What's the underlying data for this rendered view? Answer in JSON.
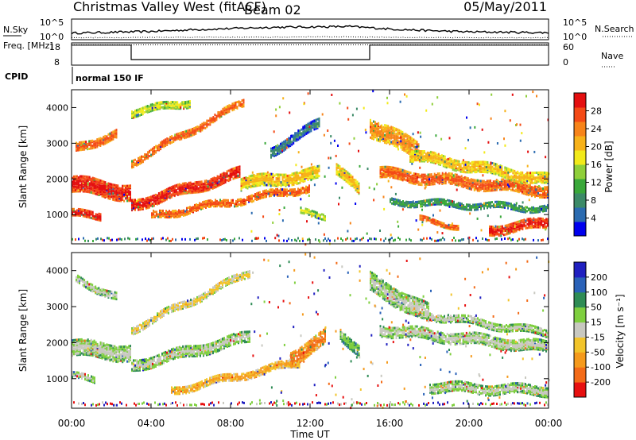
{
  "header": {
    "station": "Christmas Valley West (fitACF)",
    "beam": "Beam 02",
    "date": "05/May/2011"
  },
  "colors": {
    "power_scale": [
      "#0000ee",
      "#2b6bb0",
      "#3c8a68",
      "#3aa83a",
      "#8fcf3a",
      "#f2ea1a",
      "#f7b21a",
      "#f7841a",
      "#f44a16",
      "#e40f10"
    ],
    "velocity_scale": [
      "#2020c0",
      "#2a62b8",
      "#2f8c55",
      "#7fcf3f",
      "#c8c8c0",
      "#f2c42a",
      "#f59a1c",
      "#f36b18",
      "#e71010"
    ],
    "grey_scatter": "#c4c4bc"
  },
  "chart_data": [
    {
      "type": "line",
      "panel": "noise",
      "left_label": "N.Sky",
      "right_label": "N.Search",
      "left_ticks": [
        "10^5",
        "10^0"
      ],
      "right_ticks": [
        "10^5",
        "10^0"
      ],
      "x": [
        "00:00",
        "02:00",
        "04:00",
        "06:00",
        "08:00",
        "10:00",
        "12:00",
        "14:00",
        "16:00",
        "18:00",
        "20:00",
        "22:00",
        "24:00"
      ],
      "series": [
        {
          "style": "solid",
          "values": [
            1.6,
            1.8,
            2.0,
            2.4,
            2.7,
            3.0,
            3.1,
            3.2,
            2.6,
            2.2,
            1.9,
            1.8,
            1.7
          ]
        },
        {
          "style": "dotted",
          "values": [
            0.5,
            0.5,
            0.6,
            0.6,
            0.6,
            0.6,
            0.7,
            0.7,
            0.6,
            0.5,
            0.5,
            0.5,
            0.5
          ]
        }
      ],
      "ylim": [
        0,
        5
      ]
    },
    {
      "type": "line",
      "panel": "frequency",
      "left_label": "Freq. [MHz]",
      "right_label": "Nave",
      "left_ticks": [
        "18",
        "8"
      ],
      "right_ticks": [
        "60",
        "0"
      ],
      "series": [
        {
          "name": "Freq",
          "style": "solid",
          "segments": [
            {
              "from": "00:00",
              "to": "03:00",
              "value": 17
            },
            {
              "from": "03:00",
              "to": "15:00",
              "value": 10.5
            },
            {
              "from": "15:00",
              "to": "24:00",
              "value": 17
            }
          ]
        },
        {
          "name": "Nave",
          "style": "dotted",
          "value": 55
        }
      ],
      "ylim": [
        8,
        18
      ]
    },
    {
      "type": "text",
      "panel": "cpid",
      "label": "CPID",
      "value": "normal 150 IF"
    },
    {
      "type": "heatmap",
      "panel": "power",
      "ylabel": "Slant Range [km]",
      "yticks": [
        "1000",
        "2000",
        "3000",
        "4000"
      ],
      "ylim": [
        180,
        4500
      ],
      "colorbar_label": "Power [dB]",
      "colorbar_ticks": [
        "4",
        "8",
        "12",
        "16",
        "20",
        "24",
        "28"
      ],
      "xlim_hours": [
        0,
        24
      ],
      "bands": [
        {
          "t0": 0.0,
          "t1": 3.0,
          "r0": 1900,
          "r1": 1650,
          "w": 450,
          "level": 9
        },
        {
          "t0": 0.0,
          "t1": 1.5,
          "r0": 1050,
          "r1": 1000,
          "w": 180,
          "level": 9
        },
        {
          "t0": 0.2,
          "t1": 2.3,
          "r0": 2900,
          "r1": 3300,
          "w": 220,
          "level": 8
        },
        {
          "t0": 3.0,
          "t1": 8.5,
          "r0": 1300,
          "r1": 2200,
          "w": 300,
          "level": 9
        },
        {
          "t0": 3.0,
          "t1": 8.7,
          "r0": 2500,
          "r1": 4200,
          "w": 200,
          "level": 8
        },
        {
          "t0": 3.0,
          "t1": 6.0,
          "r0": 3900,
          "r1": 4200,
          "w": 200,
          "level": 5
        },
        {
          "t0": 4.0,
          "t1": 12.0,
          "r0": 1000,
          "r1": 1800,
          "w": 200,
          "level": 8
        },
        {
          "t0": 8.5,
          "t1": 12.5,
          "r0": 1900,
          "r1": 2200,
          "w": 350,
          "level": 6
        },
        {
          "t0": 10.0,
          "t1": 12.5,
          "r0": 2800,
          "r1": 3600,
          "w": 250,
          "level": 2
        },
        {
          "t0": 11.5,
          "t1": 12.8,
          "r0": 1100,
          "r1": 1000,
          "w": 150,
          "level": 5
        },
        {
          "t0": 13.3,
          "t1": 14.5,
          "r0": 2300,
          "r1": 1700,
          "w": 300,
          "level": 6
        },
        {
          "t0": 15.0,
          "t1": 17.5,
          "r0": 3500,
          "r1": 2800,
          "w": 500,
          "level": 7
        },
        {
          "t0": 15.5,
          "t1": 24.0,
          "r0": 2200,
          "r1": 1700,
          "w": 300,
          "level": 8
        },
        {
          "t0": 16.0,
          "t1": 24.0,
          "r0": 1400,
          "r1": 1200,
          "w": 150,
          "level": 3
        },
        {
          "t0": 17.0,
          "t1": 24.0,
          "r0": 2700,
          "r1": 2000,
          "w": 300,
          "level": 6
        },
        {
          "t0": 17.5,
          "t1": 19.5,
          "r0": 900,
          "r1": 700,
          "w": 120,
          "level": 8
        },
        {
          "t0": 21.0,
          "t1": 24.0,
          "r0": 600,
          "r1": 800,
          "w": 250,
          "level": 9
        }
      ]
    },
    {
      "type": "heatmap",
      "panel": "velocity",
      "ylabel": "Slant Range [km]",
      "yticks": [
        "1000",
        "2000",
        "3000",
        "4000"
      ],
      "ylim": [
        180,
        4500
      ],
      "colorbar_label": "Velocity [m s⁻¹]",
      "colorbar_ticks": [
        "200",
        "100",
        "50",
        "15",
        "-15",
        "-50",
        "-100",
        "-200"
      ],
      "xlim_hours": [
        0,
        24
      ],
      "xlabel": "Time UT",
      "xticks": [
        "00:00",
        "04:00",
        "08:00",
        "12:00",
        "16:00",
        "20:00",
        "00:00"
      ],
      "bands": [
        {
          "t0": 0.0,
          "t1": 3.0,
          "r0": 1900,
          "r1": 1750,
          "w": 450,
          "level": 4
        },
        {
          "t0": 0.0,
          "t1": 1.2,
          "r0": 1100,
          "r1": 1000,
          "w": 150,
          "level": 4
        },
        {
          "t0": 0.2,
          "t1": 2.3,
          "r0": 3800,
          "r1": 3300,
          "w": 200,
          "level": 4
        },
        {
          "t0": 3.0,
          "t1": 9.0,
          "r0": 1400,
          "r1": 2200,
          "w": 300,
          "level": 4
        },
        {
          "t0": 3.0,
          "t1": 9.0,
          "r0": 2400,
          "r1": 4000,
          "w": 200,
          "level": 5
        },
        {
          "t0": 5.0,
          "t1": 11.5,
          "r0": 700,
          "r1": 1500,
          "w": 200,
          "level": 6
        },
        {
          "t0": 11.0,
          "t1": 12.8,
          "r0": 1600,
          "r1": 2200,
          "w": 400,
          "level": 7
        },
        {
          "t0": 13.5,
          "t1": 14.5,
          "r0": 2300,
          "r1": 1800,
          "w": 300,
          "level": 3
        },
        {
          "t0": 15.0,
          "t1": 18.0,
          "r0": 3700,
          "r1": 2800,
          "w": 500,
          "level": 4
        },
        {
          "t0": 15.5,
          "t1": 24.0,
          "r0": 2400,
          "r1": 1900,
          "w": 300,
          "level": 4
        },
        {
          "t0": 18.0,
          "t1": 24.0,
          "r0": 2800,
          "r1": 2300,
          "w": 200,
          "level": 4
        },
        {
          "t0": 18.0,
          "t1": 24.0,
          "r0": 800,
          "r1": 700,
          "w": 250,
          "level": 4
        }
      ]
    }
  ]
}
